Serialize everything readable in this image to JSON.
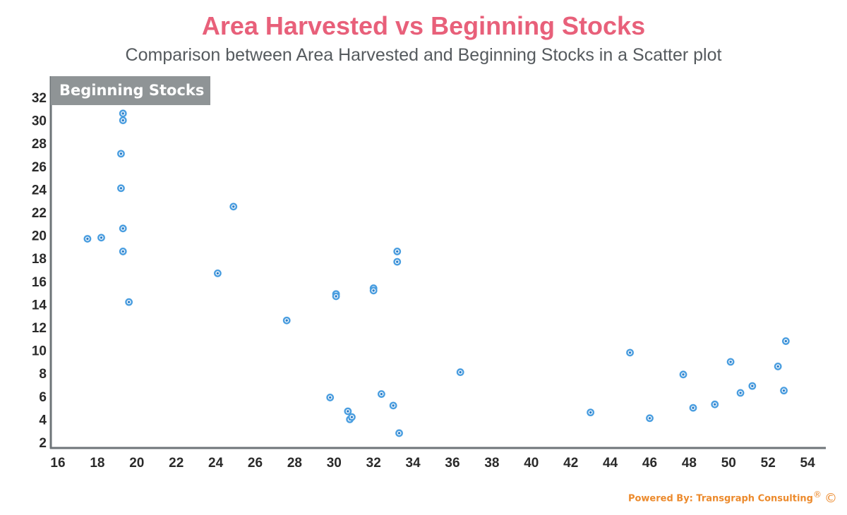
{
  "header": {
    "title": "Area Harvested vs Beginning Stocks",
    "subtitle": "Comparison between Area Harvested and Beginning Stocks in a Scatter plot"
  },
  "footer": {
    "text": "Powered By: Transgraph Consulting",
    "registered": "®",
    "copyright": "©"
  },
  "chart_data": {
    "type": "scatter",
    "title": "Area Harvested vs Beginning Stocks",
    "subtitle": "Comparison between Area Harvested and Beginning Stocks in a Scatter plot",
    "xlabel": "",
    "ylabel": "Beginning Stocks",
    "xlim": [
      16,
      55
    ],
    "ylim": [
      2,
      33
    ],
    "xticks": [
      16,
      18,
      20,
      22,
      24,
      26,
      28,
      30,
      32,
      34,
      36,
      38,
      40,
      42,
      44,
      46,
      48,
      50,
      52,
      54
    ],
    "yticks": [
      2,
      4,
      6,
      8,
      10,
      12,
      14,
      16,
      18,
      20,
      22,
      24,
      26,
      28,
      30,
      32
    ],
    "grid": false,
    "marker_color": "#4a9ee0",
    "points": [
      {
        "x": 17.5,
        "y": 19.7
      },
      {
        "x": 18.2,
        "y": 19.8
      },
      {
        "x": 19.2,
        "y": 27.1
      },
      {
        "x": 19.2,
        "y": 24.1
      },
      {
        "x": 19.3,
        "y": 30.6
      },
      {
        "x": 19.3,
        "y": 30.0
      },
      {
        "x": 19.3,
        "y": 20.6
      },
      {
        "x": 19.3,
        "y": 18.6
      },
      {
        "x": 19.6,
        "y": 14.2
      },
      {
        "x": 24.1,
        "y": 16.7
      },
      {
        "x": 24.9,
        "y": 22.5
      },
      {
        "x": 27.6,
        "y": 12.6
      },
      {
        "x": 29.8,
        "y": 5.9
      },
      {
        "x": 30.1,
        "y": 14.9
      },
      {
        "x": 30.1,
        "y": 14.7
      },
      {
        "x": 30.7,
        "y": 4.7
      },
      {
        "x": 30.8,
        "y": 4.0
      },
      {
        "x": 30.9,
        "y": 4.2
      },
      {
        "x": 32.0,
        "y": 15.4
      },
      {
        "x": 32.0,
        "y": 15.2
      },
      {
        "x": 32.4,
        "y": 6.2
      },
      {
        "x": 33.0,
        "y": 5.2
      },
      {
        "x": 33.2,
        "y": 18.6
      },
      {
        "x": 33.2,
        "y": 17.7
      },
      {
        "x": 33.3,
        "y": 2.8
      },
      {
        "x": 36.4,
        "y": 8.1
      },
      {
        "x": 43.0,
        "y": 4.6
      },
      {
        "x": 45.0,
        "y": 9.8
      },
      {
        "x": 46.0,
        "y": 4.1
      },
      {
        "x": 47.7,
        "y": 7.9
      },
      {
        "x": 48.2,
        "y": 5.0
      },
      {
        "x": 49.3,
        "y": 5.3
      },
      {
        "x": 50.1,
        "y": 9.0
      },
      {
        "x": 50.6,
        "y": 6.3
      },
      {
        "x": 51.2,
        "y": 6.9
      },
      {
        "x": 52.5,
        "y": 8.6
      },
      {
        "x": 52.8,
        "y": 6.5
      },
      {
        "x": 52.9,
        "y": 10.8
      }
    ]
  }
}
